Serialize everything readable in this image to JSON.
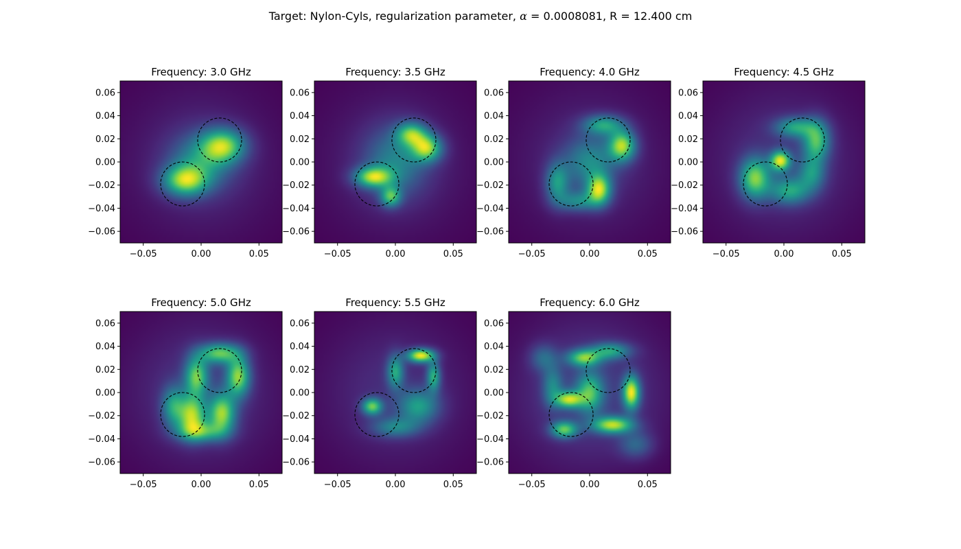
{
  "figure": {
    "title_prefix": "Target: Nylon-Cyls, regularization parameter, ",
    "title_alpha_symbol": "α",
    "title_alpha_rest": " = 0.0008081, R = 12.400 cm"
  },
  "chart_data": [
    {
      "type": "heatmap",
      "title": "Frequency: 3.0 GHz",
      "xlim": [
        -0.07,
        0.07
      ],
      "ylim": [
        -0.07,
        0.07
      ],
      "x_ticks": [
        -0.05,
        0.0,
        0.05
      ],
      "x_tick_labels": [
        "−0.05",
        "0.00",
        "0.05"
      ],
      "y_ticks": [
        0.06,
        0.04,
        0.02,
        0.0,
        -0.02,
        -0.04,
        -0.06
      ],
      "y_tick_labels": [
        "0.06",
        "0.04",
        "0.02",
        "0.00",
        "−0.02",
        "−0.04",
        "−0.06"
      ],
      "colormap": "viridis",
      "circles": [
        {
          "cx": 0.016,
          "cy": 0.019,
          "r": 0.019
        },
        {
          "cx": -0.016,
          "cy": -0.019,
          "r": 0.019
        }
      ],
      "blobs": [
        {
          "x": 0.019,
          "y": 0.014,
          "sx": 0.013,
          "sy": 0.01,
          "a": 1.0
        },
        {
          "x": -0.014,
          "y": -0.016,
          "sx": 0.013,
          "sy": 0.009,
          "a": 1.0
        },
        {
          "x": 0.0,
          "y": 0.0,
          "sx": 0.018,
          "sy": 0.016,
          "a": 0.55
        },
        {
          "x": 0.0,
          "y": 0.0,
          "sx": 0.045,
          "sy": 0.045,
          "a": 0.18
        }
      ]
    },
    {
      "type": "heatmap",
      "title": "Frequency: 3.5 GHz",
      "xlim": [
        -0.07,
        0.07
      ],
      "ylim": [
        -0.07,
        0.07
      ],
      "x_ticks": [
        -0.05,
        0.0,
        0.05
      ],
      "x_tick_labels": [
        "−0.05",
        "0.00",
        "0.05"
      ],
      "y_ticks": [
        0.06,
        0.04,
        0.02,
        0.0,
        -0.02,
        -0.04,
        -0.06
      ],
      "y_tick_labels": [
        "0.06",
        "0.04",
        "0.02",
        "0.00",
        "−0.02",
        "−0.04",
        "−0.06"
      ],
      "colormap": "viridis",
      "circles": [
        {
          "cx": 0.016,
          "cy": 0.019,
          "r": 0.019
        },
        {
          "cx": -0.016,
          "cy": -0.019,
          "r": 0.019
        }
      ],
      "blobs": [
        {
          "x": 0.027,
          "y": 0.012,
          "sx": 0.009,
          "sy": 0.008,
          "a": 0.95
        },
        {
          "x": 0.014,
          "y": 0.024,
          "sx": 0.009,
          "sy": 0.007,
          "a": 0.8
        },
        {
          "x": -0.019,
          "y": -0.013,
          "sx": 0.011,
          "sy": 0.006,
          "a": 0.95
        },
        {
          "x": -0.004,
          "y": -0.03,
          "sx": 0.006,
          "sy": 0.006,
          "a": 0.75
        },
        {
          "x": 0.0,
          "y": 0.0,
          "sx": 0.018,
          "sy": 0.02,
          "a": 0.45
        },
        {
          "x": 0.0,
          "y": 0.0,
          "sx": 0.045,
          "sy": 0.045,
          "a": 0.15
        }
      ]
    },
    {
      "type": "heatmap",
      "title": "Frequency: 4.0 GHz",
      "xlim": [
        -0.07,
        0.07
      ],
      "ylim": [
        -0.07,
        0.07
      ],
      "x_ticks": [
        -0.05,
        0.0,
        0.05
      ],
      "x_tick_labels": [
        "−0.05",
        "0.00",
        "0.05"
      ],
      "y_ticks": [
        0.06,
        0.04,
        0.02,
        0.0,
        -0.02,
        -0.04,
        -0.06
      ],
      "y_tick_labels": [
        "0.06",
        "0.04",
        "0.02",
        "0.00",
        "−0.02",
        "−0.04",
        "−0.06"
      ],
      "colormap": "viridis",
      "circles": [
        {
          "cx": 0.016,
          "cy": 0.019,
          "r": 0.019
        },
        {
          "cx": -0.016,
          "cy": -0.019,
          "r": 0.019
        }
      ],
      "blobs": [
        {
          "x": 0.028,
          "y": 0.014,
          "sx": 0.008,
          "sy": 0.009,
          "a": 0.95
        },
        {
          "x": 0.008,
          "y": -0.024,
          "sx": 0.007,
          "sy": 0.009,
          "a": 0.95
        },
        {
          "x": 0.012,
          "y": 0.032,
          "sx": 0.012,
          "sy": 0.006,
          "a": 0.6
        },
        {
          "x": -0.028,
          "y": -0.018,
          "sx": 0.007,
          "sy": 0.012,
          "a": 0.55
        },
        {
          "x": 0.0,
          "y": 0.0,
          "sx": 0.015,
          "sy": 0.015,
          "a": 0.45
        },
        {
          "x": -0.01,
          "y": -0.034,
          "sx": 0.012,
          "sy": 0.006,
          "a": 0.45
        },
        {
          "x": 0.0,
          "y": 0.0,
          "sx": 0.045,
          "sy": 0.045,
          "a": 0.15
        }
      ]
    },
    {
      "type": "heatmap",
      "title": "Frequency: 4.5 GHz",
      "xlim": [
        -0.07,
        0.07
      ],
      "ylim": [
        -0.07,
        0.07
      ],
      "x_ticks": [
        -0.05,
        0.0,
        0.05
      ],
      "x_tick_labels": [
        "−0.05",
        "0.00",
        "0.05"
      ],
      "y_ticks": [
        0.06,
        0.04,
        0.02,
        0.0,
        -0.02,
        -0.04,
        -0.06
      ],
      "y_tick_labels": [
        "0.06",
        "0.04",
        "0.02",
        "0.00",
        "−0.02",
        "−0.04",
        "−0.06"
      ],
      "colormap": "viridis",
      "circles": [
        {
          "cx": 0.016,
          "cy": 0.019,
          "r": 0.019
        },
        {
          "cx": -0.016,
          "cy": -0.019,
          "r": 0.019
        }
      ],
      "blobs": [
        {
          "x": -0.003,
          "y": 0.001,
          "sx": 0.006,
          "sy": 0.006,
          "a": 0.95
        },
        {
          "x": -0.025,
          "y": -0.014,
          "sx": 0.009,
          "sy": 0.012,
          "a": 0.8
        },
        {
          "x": 0.028,
          "y": 0.018,
          "sx": 0.008,
          "sy": 0.012,
          "a": 0.7
        },
        {
          "x": 0.01,
          "y": 0.03,
          "sx": 0.012,
          "sy": 0.006,
          "a": 0.55
        },
        {
          "x": 0.005,
          "y": -0.025,
          "sx": 0.012,
          "sy": 0.008,
          "a": 0.55
        },
        {
          "x": 0.024,
          "y": -0.01,
          "sx": 0.008,
          "sy": 0.01,
          "a": 0.45
        },
        {
          "x": 0.0,
          "y": 0.0,
          "sx": 0.045,
          "sy": 0.045,
          "a": 0.17
        }
      ]
    },
    {
      "type": "heatmap",
      "title": "Frequency: 5.0 GHz",
      "xlim": [
        -0.07,
        0.07
      ],
      "ylim": [
        -0.07,
        0.07
      ],
      "x_ticks": [
        -0.05,
        0.0,
        0.05
      ],
      "x_tick_labels": [
        "−0.05",
        "0.00",
        "0.05"
      ],
      "y_ticks": [
        0.06,
        0.04,
        0.02,
        0.0,
        -0.02,
        -0.04,
        -0.06
      ],
      "y_tick_labels": [
        "0.06",
        "0.04",
        "0.02",
        "0.00",
        "−0.02",
        "−0.04",
        "−0.06"
      ],
      "colormap": "viridis",
      "circles": [
        {
          "cx": 0.016,
          "cy": 0.019,
          "r": 0.019
        },
        {
          "cx": -0.016,
          "cy": -0.019,
          "r": 0.019
        }
      ],
      "blobs": [
        {
          "x": 0.032,
          "y": 0.014,
          "sx": 0.007,
          "sy": 0.012,
          "a": 0.95
        },
        {
          "x": 0.016,
          "y": 0.034,
          "sx": 0.012,
          "sy": 0.006,
          "a": 0.85
        },
        {
          "x": -0.008,
          "y": -0.02,
          "sx": 0.008,
          "sy": 0.012,
          "a": 0.95
        },
        {
          "x": 0.018,
          "y": -0.018,
          "sx": 0.008,
          "sy": 0.012,
          "a": 0.95
        },
        {
          "x": -0.004,
          "y": 0.014,
          "sx": 0.007,
          "sy": 0.012,
          "a": 0.85
        },
        {
          "x": -0.024,
          "y": -0.012,
          "sx": 0.007,
          "sy": 0.012,
          "a": 0.6
        },
        {
          "x": 0.0,
          "y": -0.034,
          "sx": 0.014,
          "sy": 0.006,
          "a": 0.65
        },
        {
          "x": 0.0,
          "y": 0.0,
          "sx": 0.045,
          "sy": 0.045,
          "a": 0.2
        }
      ]
    },
    {
      "type": "heatmap",
      "title": "Frequency: 5.5 GHz",
      "xlim": [
        -0.07,
        0.07
      ],
      "ylim": [
        -0.07,
        0.07
      ],
      "x_ticks": [
        -0.05,
        0.0,
        0.05
      ],
      "x_tick_labels": [
        "−0.05",
        "0.00",
        "0.05"
      ],
      "y_ticks": [
        0.06,
        0.04,
        0.02,
        0.0,
        -0.02,
        -0.04,
        -0.06
      ],
      "y_tick_labels": [
        "0.06",
        "0.04",
        "0.02",
        "0.00",
        "−0.02",
        "−0.04",
        "−0.06"
      ],
      "colormap": "viridis",
      "circles": [
        {
          "cx": 0.016,
          "cy": 0.019,
          "r": 0.019
        },
        {
          "cx": -0.016,
          "cy": -0.019,
          "r": 0.019
        }
      ],
      "blobs": [
        {
          "x": 0.022,
          "y": 0.032,
          "sx": 0.008,
          "sy": 0.004,
          "a": 1.0
        },
        {
          "x": 0.033,
          "y": 0.014,
          "sx": 0.004,
          "sy": 0.009,
          "a": 0.6
        },
        {
          "x": 0.0,
          "y": 0.018,
          "sx": 0.005,
          "sy": 0.01,
          "a": 0.55
        },
        {
          "x": -0.02,
          "y": -0.012,
          "sx": 0.006,
          "sy": 0.005,
          "a": 0.75
        },
        {
          "x": 0.02,
          "y": -0.012,
          "sx": 0.012,
          "sy": 0.01,
          "a": 0.5
        },
        {
          "x": 0.0,
          "y": -0.03,
          "sx": 0.014,
          "sy": 0.006,
          "a": 0.4
        },
        {
          "x": 0.0,
          "y": 0.0,
          "sx": 0.045,
          "sy": 0.045,
          "a": 0.15
        }
      ]
    },
    {
      "type": "heatmap",
      "title": "Frequency: 6.0 GHz",
      "xlim": [
        -0.07,
        0.07
      ],
      "ylim": [
        -0.07,
        0.07
      ],
      "x_ticks": [
        -0.05,
        0.0,
        0.05
      ],
      "x_tick_labels": [
        "−0.05",
        "0.00",
        "0.05"
      ],
      "y_ticks": [
        0.06,
        0.04,
        0.02,
        0.0,
        -0.02,
        -0.04,
        -0.06
      ],
      "y_tick_labels": [
        "0.06",
        "0.04",
        "0.02",
        "0.00",
        "−0.02",
        "−0.04",
        "−0.06"
      ],
      "colormap": "viridis",
      "circles": [
        {
          "cx": 0.016,
          "cy": 0.019,
          "r": 0.019
        },
        {
          "cx": -0.016,
          "cy": -0.019,
          "r": 0.019
        }
      ],
      "blobs": [
        {
          "x": 0.036,
          "y": 0.0,
          "sx": 0.005,
          "sy": 0.01,
          "a": 1.0
        },
        {
          "x": 0.02,
          "y": -0.028,
          "sx": 0.012,
          "sy": 0.005,
          "a": 0.9
        },
        {
          "x": -0.018,
          "y": -0.006,
          "sx": 0.008,
          "sy": 0.005,
          "a": 0.85
        },
        {
          "x": -0.022,
          "y": -0.032,
          "sx": 0.008,
          "sy": 0.005,
          "a": 0.75
        },
        {
          "x": -0.005,
          "y": 0.03,
          "sx": 0.01,
          "sy": 0.005,
          "a": 0.75
        },
        {
          "x": 0.0,
          "y": 0.0,
          "sx": 0.008,
          "sy": 0.012,
          "a": 0.65
        },
        {
          "x": 0.018,
          "y": 0.036,
          "sx": 0.012,
          "sy": 0.005,
          "a": 0.55
        },
        {
          "x": -0.032,
          "y": 0.005,
          "sx": 0.006,
          "sy": 0.012,
          "a": 0.4
        },
        {
          "x": -0.04,
          "y": 0.03,
          "sx": 0.008,
          "sy": 0.008,
          "a": 0.3
        },
        {
          "x": 0.04,
          "y": -0.045,
          "sx": 0.01,
          "sy": 0.008,
          "a": 0.3
        },
        {
          "x": 0.0,
          "y": 0.0,
          "sx": 0.045,
          "sy": 0.045,
          "a": 0.22
        }
      ]
    }
  ]
}
